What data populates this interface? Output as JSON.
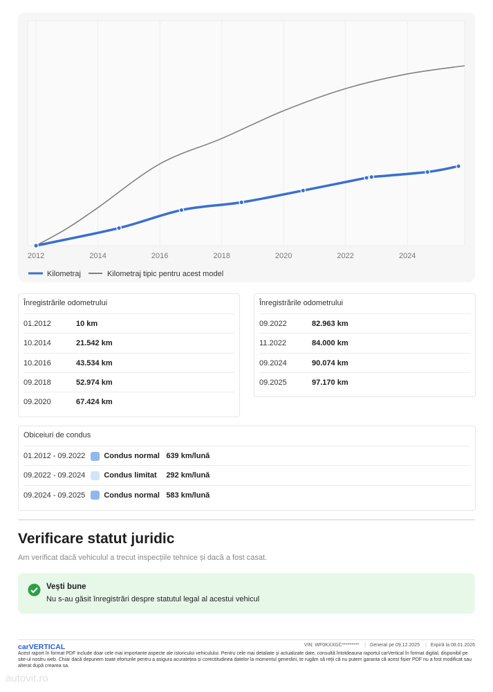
{
  "chart_data": {
    "type": "line",
    "xlim": [
      2011.73,
      2025.85
    ],
    "xticks": [
      2012,
      2014,
      2016,
      2018,
      2020,
      2022,
      2024
    ],
    "ylim": [
      0,
      275000
    ],
    "series": [
      {
        "name": "Kilometraj",
        "color": "#3a6fd0",
        "x": [
          2012.0,
          2014.68,
          2016.7,
          2018.64,
          2020.63,
          2022.68,
          2022.84,
          2024.65,
          2025.65
        ],
        "values": [
          10,
          21542,
          43534,
          52974,
          67424,
          82963,
          84000,
          90074,
          97170
        ]
      },
      {
        "name": "Kilometraj tipic pentru acest model",
        "color": "#808080",
        "x": [
          2012.0,
          2013.0,
          2014.0,
          2016.0,
          2018.0,
          2020.0,
          2022.0,
          2024.0,
          2025.85
        ],
        "values": [
          0,
          21000,
          46500,
          100000,
          131000,
          165000,
          192000,
          210000,
          220000
        ]
      }
    ]
  },
  "odometer": [
    {
      "title": "Înregistrările odometrului",
      "rows": [
        [
          "01.2012",
          "10 km"
        ],
        [
          "10.2014",
          "21.542 km"
        ],
        [
          "10.2016",
          "43.534 km"
        ],
        [
          "09.2018",
          "52.974 km"
        ],
        [
          "09.2020",
          "67.424 km"
        ]
      ]
    },
    {
      "title": "Înregistrările odometrului",
      "rows": [
        [
          "09.2022",
          "82.963 km"
        ],
        [
          "11.2022",
          "84.000 km"
        ],
        [
          "09.2024",
          "90.074 km"
        ],
        [
          "09.2025",
          "97.170 km"
        ]
      ]
    }
  ],
  "driving": {
    "title": "Obiceiuri de condus",
    "rows": [
      {
        "period": "01.2012 - 09.2022",
        "color": "#8fb8ee",
        "label": "Condus normal",
        "value": "639 km/lună"
      },
      {
        "period": "09.2022 - 09.2024",
        "color": "#d3e4f8",
        "label": "Condus limitat",
        "value": "292 km/lună"
      },
      {
        "period": "09.2024 - 09.2025",
        "color": "#8fb8ee",
        "label": "Condus normal",
        "value": "583 km/lună"
      }
    ]
  },
  "legal": {
    "title": "Verificare statut juridic",
    "subtitle": "Am verificat dacă vehiculul a trecut inspecțiile tehnice și dacă a fost casat.",
    "notice": {
      "title": "Vești bune",
      "text": "Nu s-au găsit înregistrări despre statutul legal al acestui vehicul"
    }
  },
  "footer": {
    "logo": "carVERTICAL",
    "vin_label": "VIN:",
    "vin": "WF0KXXGC*********",
    "generated_label": "Generat pe",
    "generated": "09.12.2025",
    "expires_label": "Expiră la",
    "expires": "08.01.2026",
    "disclaimer": "Acest raport în format PDF include doar cele mai importante aspecte ale istoricului vehiculului. Pentru cele mai detaliate și actualizate date, consultă întotdeauna raportul carVertical în format digital, disponibil pe site-ul nostru web. Chiar dacă depunem toate eforturile pentru a asigura acuratețea și corectitudinea datelor la momentul generării, te rugăm să reții că nu putem garanta că acest fișier PDF nu a fost modificat sau alterat după crearea sa."
  },
  "watermark": "autovit.ro"
}
